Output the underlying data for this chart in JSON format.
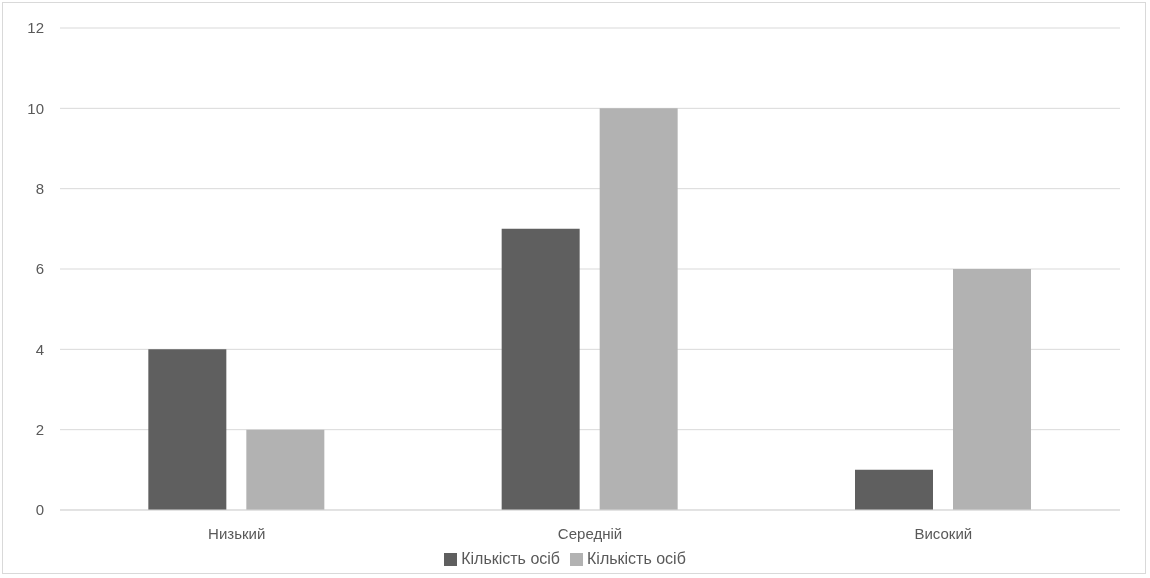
{
  "chart_data": {
    "type": "bar",
    "categories": [
      "Низький",
      "Середній",
      "Високий"
    ],
    "series": [
      {
        "name": "Кількість осіб",
        "color": "#5f5f5f",
        "values": [
          4,
          7,
          1
        ]
      },
      {
        "name": "Кількість осіб",
        "color": "#b2b2b2",
        "values": [
          2,
          10,
          6
        ]
      }
    ],
    "ylim": [
      0,
      12
    ],
    "yticks": [
      0,
      2,
      4,
      6,
      8,
      10,
      12
    ],
    "grid": "y",
    "legend": "bottom"
  }
}
